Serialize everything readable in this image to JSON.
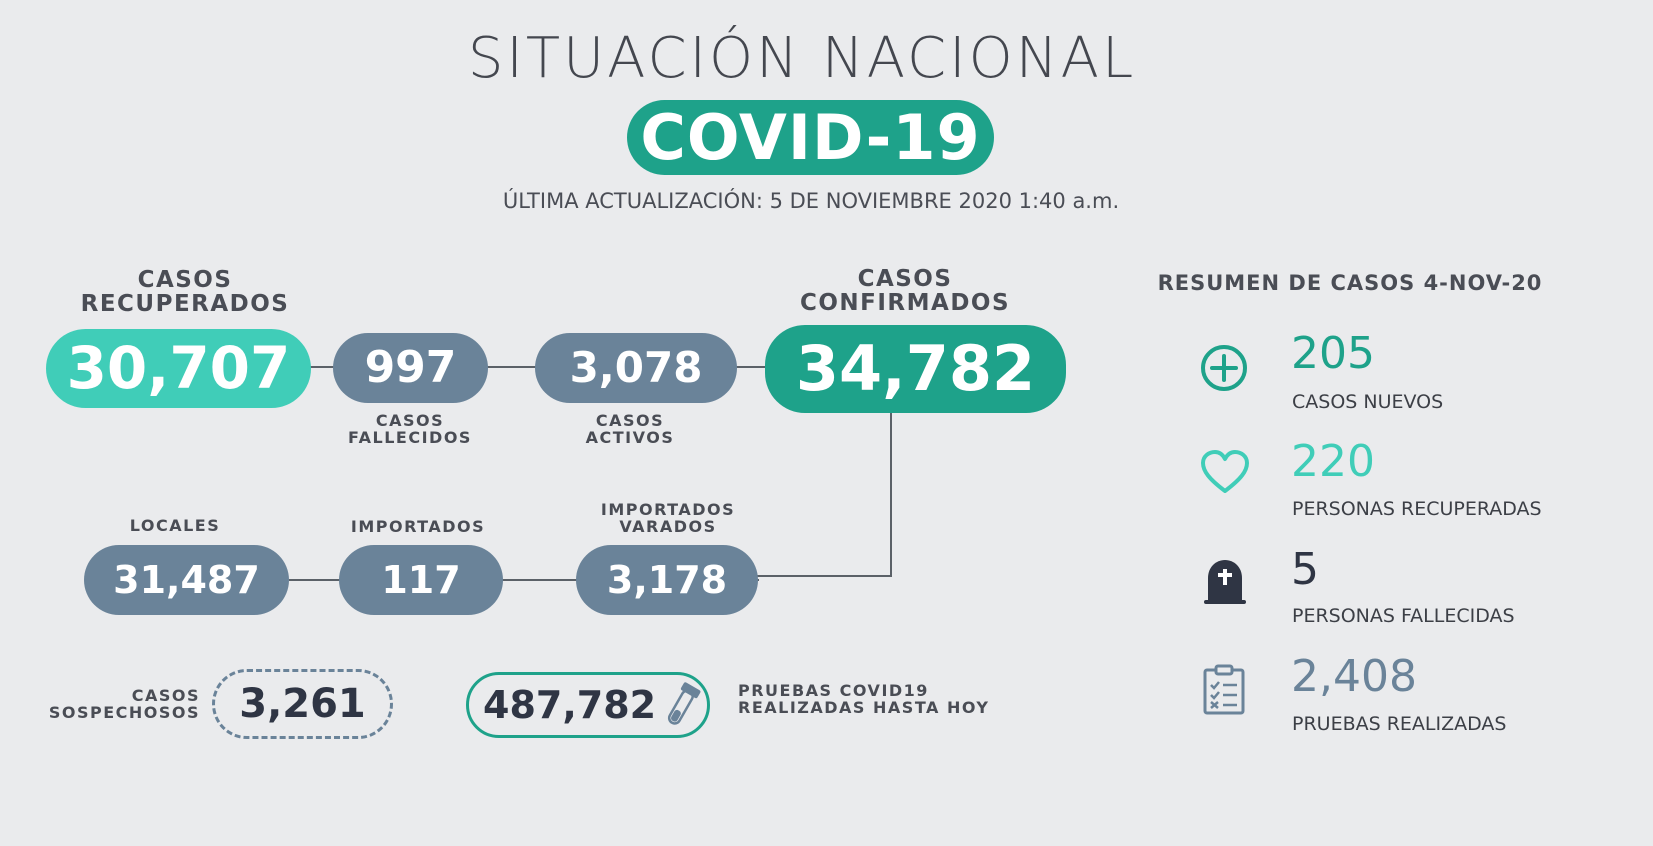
{
  "header": {
    "title": "SITUACIÓN NACIONAL",
    "badge": "COVID-19",
    "update": "ÚLTIMA ACTUALIZACIÓN: 5 DE NOVIEMBRE 2020 1:40 a.m."
  },
  "recuperados": {
    "label_1": "CASOS",
    "label_2": "RECUPERADOS",
    "value": "30,707"
  },
  "fallecidos": {
    "value": "997",
    "label_1": "CASOS",
    "label_2": "FALLECIDOS"
  },
  "activos": {
    "value": "3,078",
    "label_1": "CASOS",
    "label_2": "ACTIVOS"
  },
  "confirmados": {
    "label_1": "CASOS",
    "label_2": "CONFIRMADOS",
    "value": "34,782"
  },
  "locales": {
    "label": "LOCALES",
    "value": "31,487"
  },
  "importados": {
    "label": "IMPORTADOS",
    "value": "117"
  },
  "importados_varados": {
    "label_1": "IMPORTADOS",
    "label_2": "VARADOS",
    "value": "3,178"
  },
  "sospechosos": {
    "label_1": "CASOS",
    "label_2": "SOSPECHOSOS",
    "value": "3,261"
  },
  "pruebas": {
    "value": "487,782",
    "label_1": "PRUEBAS COVID19",
    "label_2": "REALIZADAS HASTA HOY"
  },
  "summary": {
    "title": "RESUMEN DE CASOS 4-NOV-20",
    "items": [
      {
        "icon": "plus-circle-icon",
        "value": "205",
        "label": "CASOS NUEVOS",
        "color": "#1ea28a"
      },
      {
        "icon": "heart-icon",
        "value": "220",
        "label": "PERSONAS RECUPERADAS",
        "color": "#40cdb8"
      },
      {
        "icon": "tombstone-icon",
        "value": "5",
        "label": "PERSONAS FALLECIDAS",
        "color": "#2f3544"
      },
      {
        "icon": "clipboard-icon",
        "value": "2,408",
        "label": "PRUEBAS REALIZADAS",
        "color": "#6a8399"
      }
    ]
  }
}
